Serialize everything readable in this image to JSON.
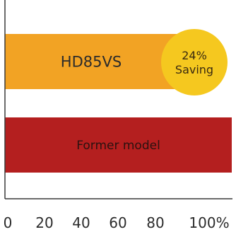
{
  "chart_data": {
    "type": "bar",
    "orientation": "horizontal",
    "categories": [
      "HD85VS",
      "Former model"
    ],
    "values": [
      76,
      100
    ],
    "colors": [
      "#f2a324",
      "#b41f1f"
    ],
    "label_colors": [
      "#2b2b2b",
      "#2b1210"
    ],
    "xlim": [
      0,
      100
    ],
    "xticks": [
      "0",
      "20",
      "40",
      "60",
      "80",
      "100%"
    ],
    "annotation": {
      "line1": "24%",
      "line2": "Saving",
      "color": "#f5c81f",
      "text_color": "#3a2a10"
    },
    "grid": false,
    "title": "",
    "xlabel": "",
    "ylabel": ""
  }
}
